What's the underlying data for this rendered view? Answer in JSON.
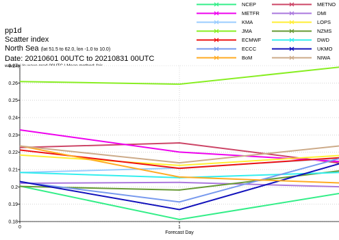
{
  "header": {
    "line1": "pp1d",
    "line2": "Scatter index",
    "region": "North Sea",
    "region_coords": "(lat 51.5 to 62.0, lon -1.0 to 10.0)",
    "date": "Date: 20210601 00UTC to 20210831 00UTC",
    "method": "waveapi le wave prod 00UTC | Mean method: fair"
  },
  "legend": [
    {
      "name": "NCEP",
      "color": "#33ee88"
    },
    {
      "name": "METNO",
      "color": "#cc4466"
    },
    {
      "name": "METFR",
      "color": "#ee00ee"
    },
    {
      "name": "DMI",
      "color": "#aa77dd"
    },
    {
      "name": "KMA",
      "color": "#99ccff"
    },
    {
      "name": "LOPS",
      "color": "#ffee33"
    },
    {
      "name": "JMA",
      "color": "#88ee22"
    },
    {
      "name": "NZMS",
      "color": "#669933"
    },
    {
      "name": "ECMWF",
      "color": "#ee1111"
    },
    {
      "name": "DWD",
      "color": "#33eeee"
    },
    {
      "name": "ECCC",
      "color": "#7799ee"
    },
    {
      "name": "UKMO",
      "color": "#1111bb"
    },
    {
      "name": "BoM",
      "color": "#ffaa22"
    },
    {
      "name": "NIWA",
      "color": "#ccaa88"
    }
  ],
  "chart_data": {
    "type": "line",
    "title": "pp1d Scatter index",
    "xlabel": "Forecast Day",
    "ylabel": "",
    "x": [
      0,
      1,
      2
    ],
    "xticks": [
      0,
      1
    ],
    "xlim": [
      0,
      2
    ],
    "ylim": [
      0.18,
      0.27
    ],
    "yticks": [
      0.18,
      0.19,
      0.2,
      0.21,
      0.22,
      0.23,
      0.24,
      0.25,
      0.26,
      0.27
    ],
    "grid": true,
    "legend_position": "top-right",
    "series": [
      {
        "name": "NCEP",
        "color": "#33ee88",
        "values": [
          0.2005,
          0.1812,
          0.1962
        ]
      },
      {
        "name": "METNO",
        "color": "#cc4466",
        "values": [
          0.2227,
          0.2254,
          0.2138
        ]
      },
      {
        "name": "METFR",
        "color": "#ee00ee",
        "values": [
          0.2329,
          0.2201,
          0.2147
        ]
      },
      {
        "name": "DMI",
        "color": "#aa77dd",
        "values": [
          0.2021,
          0.2026,
          0.2001
        ]
      },
      {
        "name": "KMA",
        "color": "#99ccff",
        "values": [
          0.2083,
          0.2109,
          0.2165
        ]
      },
      {
        "name": "LOPS",
        "color": "#ffee33",
        "values": [
          0.2184,
          0.2124,
          0.2181
        ]
      },
      {
        "name": "JMA",
        "color": "#88ee22",
        "values": [
          0.2608,
          0.2593,
          0.2691
        ]
      },
      {
        "name": "NZMS",
        "color": "#669933",
        "values": [
          0.2003,
          0.1982,
          0.2092
        ]
      },
      {
        "name": "ECMWF",
        "color": "#ee1111",
        "values": [
          0.2213,
          0.2107,
          0.2168
        ]
      },
      {
        "name": "DWD",
        "color": "#33eeee",
        "values": [
          0.2083,
          0.2053,
          0.2083
        ]
      },
      {
        "name": "ECCC",
        "color": "#7799ee",
        "values": [
          0.2029,
          0.1913,
          0.2163
        ]
      },
      {
        "name": "UKMO",
        "color": "#1111bb",
        "values": [
          0.2031,
          0.1869,
          0.2133
        ]
      },
      {
        "name": "BoM",
        "color": "#ffaa22",
        "values": [
          0.2237,
          0.2057,
          0.2023
        ]
      },
      {
        "name": "NIWA",
        "color": "#ccaa88",
        "values": [
          0.2236,
          0.2139,
          0.2236
        ]
      }
    ]
  }
}
